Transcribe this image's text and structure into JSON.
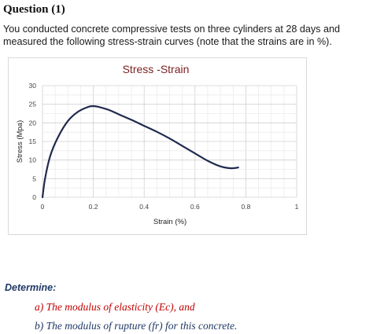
{
  "question": {
    "title": "Question (1)",
    "intro": "You conducted concrete compressive tests on three cylinders at 28 days and measured the following stress-strain curves (note that the strains are in %)."
  },
  "chart_data": {
    "type": "line",
    "title": "Stress -Strain",
    "xlabel": "Strain (%)",
    "ylabel": "Stress (Mpa)",
    "xlim": [
      0,
      1
    ],
    "ylim": [
      0,
      30
    ],
    "x_ticks": [
      "0",
      "0.2",
      "0.4",
      "0.6",
      "0.8",
      "1"
    ],
    "y_ticks": [
      "0",
      "5",
      "10",
      "15",
      "20",
      "25",
      "30"
    ],
    "grid": true,
    "series": [
      {
        "name": "",
        "color": "#1f2a4d",
        "x": [
          0,
          0.01,
          0.03,
          0.06,
          0.1,
          0.14,
          0.18,
          0.2,
          0.22,
          0.26,
          0.3,
          0.35,
          0.4,
          0.45,
          0.5,
          0.55,
          0.6,
          0.65,
          0.7,
          0.74,
          0.77
        ],
        "y": [
          0,
          5,
          11,
          16,
          20.5,
          23,
          24.3,
          24.5,
          24.3,
          23.5,
          22.3,
          20.8,
          19.2,
          17.6,
          15.8,
          13.8,
          11.8,
          9.8,
          8.3,
          7.8,
          8.0
        ]
      }
    ]
  },
  "determine": {
    "heading": "Determine:",
    "item_a": "a) The modulus of elasticity (Ec), and",
    "item_b": "b) The modulus of rupture (fr) for this concrete."
  }
}
